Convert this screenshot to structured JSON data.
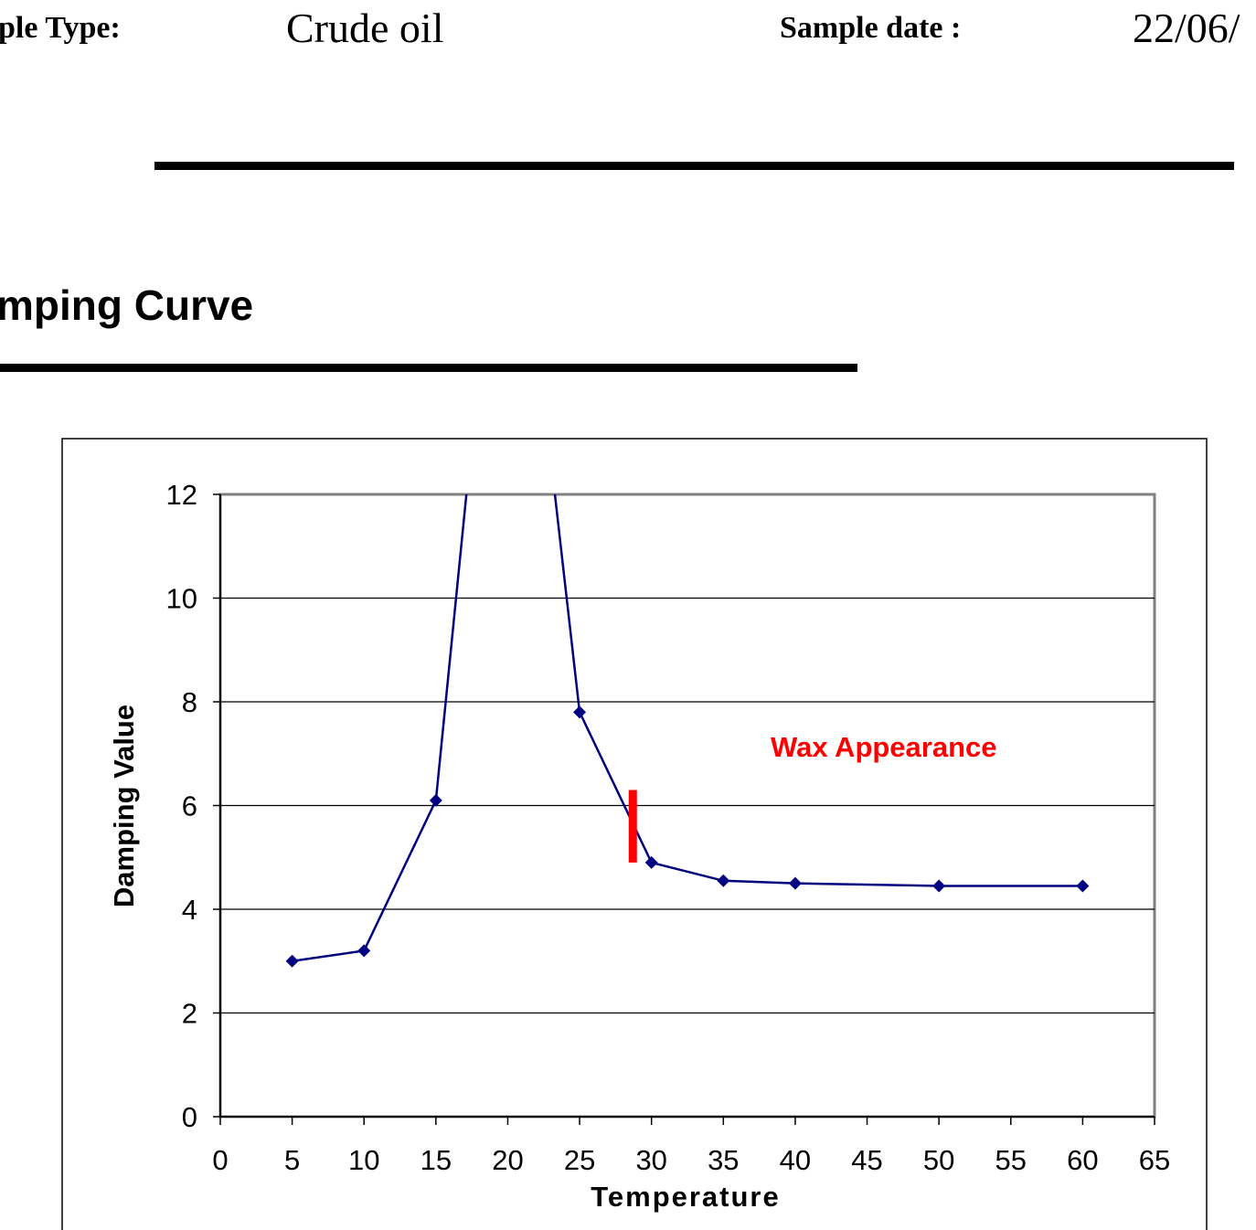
{
  "header": {
    "sample_type_label": "ple Type:",
    "sample_type_value": "Crude oil",
    "sample_date_label": "Sample date :",
    "sample_date_value": "22/06/"
  },
  "section": {
    "title": "mping Curve"
  },
  "colors": {
    "series": "#000080",
    "annotation": "#ff0000"
  },
  "chart_data": {
    "type": "line",
    "title": "",
    "xlabel": "Temperature",
    "ylabel": "Damping Value",
    "xlim": [
      0,
      65
    ],
    "ylim": [
      0,
      12
    ],
    "xticks": [
      0,
      5,
      10,
      15,
      20,
      25,
      30,
      35,
      40,
      45,
      50,
      55,
      60,
      65
    ],
    "yticks": [
      0,
      2,
      4,
      6,
      8,
      10,
      12
    ],
    "grid": "horizontal",
    "legend": "none",
    "series": [
      {
        "x": [
          5,
          10,
          15,
          20,
          25,
          30,
          35,
          40,
          50,
          60
        ],
        "y": [
          3.0,
          3.2,
          6.1,
          20.0,
          7.8,
          4.9,
          4.55,
          4.5,
          4.45,
          4.45
        ],
        "marker": "diamond"
      }
    ],
    "annotations": [
      {
        "text": "Wax Appearance",
        "x": 28.7,
        "y_from": 4.9,
        "y_to": 6.3
      }
    ]
  }
}
